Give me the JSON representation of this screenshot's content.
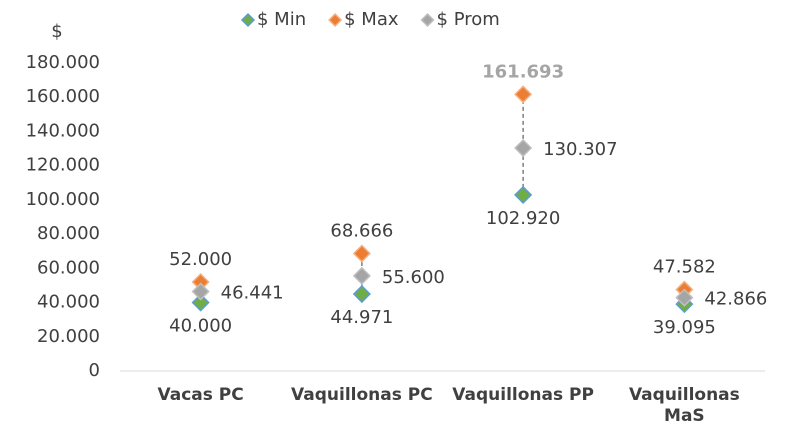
{
  "chart_data": {
    "type": "scatter",
    "y_label": "$",
    "categories": [
      "Vacas PC",
      "Vaquillonas PC",
      "Vaquillonas PP",
      "Vaquillonas MaS"
    ],
    "series": [
      {
        "name": "$ Min",
        "color": "#70ad47",
        "values": [
          40000,
          44971,
          102920,
          39095
        ],
        "value_labels": [
          "40.000",
          "44.971",
          "102.920",
          "39.095"
        ]
      },
      {
        "name": "$ Max",
        "color": "#ed7d31",
        "values": [
          52000,
          68666,
          161693,
          47582
        ],
        "value_labels": [
          "52.000",
          "68.666",
          "161.693",
          "47.582"
        ]
      },
      {
        "name": "$ Prom",
        "color": "#a5a5a5",
        "values": [
          46441,
          55600,
          130307,
          42866
        ],
        "value_labels": [
          "46.441",
          "55.600",
          "130.307",
          "42.866"
        ]
      }
    ],
    "ylim": [
      0,
      180000
    ],
    "yticks": [
      0,
      {
        "value": 20000,
        "label": "20.000"
      },
      {
        "value": 40000,
        "label": "40.000"
      },
      {
        "value": 60000,
        "label": "60.000"
      },
      {
        "value": 80000,
        "label": "80.000"
      },
      {
        "value": 100000,
        "label": "100.000"
      },
      {
        "value": 120000,
        "label": "120.000"
      },
      {
        "value": 140000,
        "label": "140.000"
      },
      {
        "value": 160000,
        "label": "160.000"
      },
      {
        "value": 180000,
        "label": "180.000"
      }
    ],
    "legend": "top"
  }
}
